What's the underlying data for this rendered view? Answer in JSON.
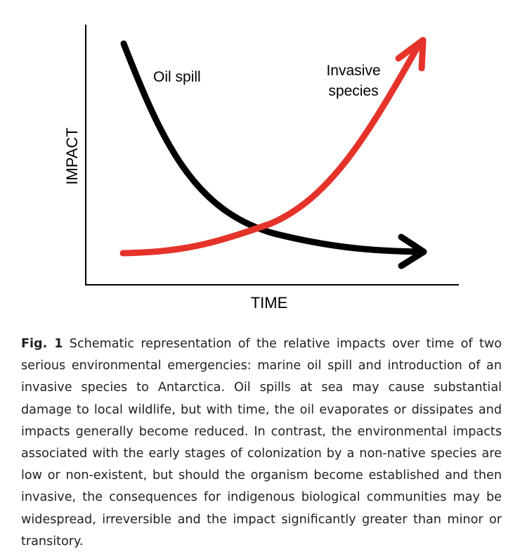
{
  "figure": {
    "y_axis_label": "IMPACT",
    "x_axis_label": "TIME",
    "series": [
      {
        "name": "Oil spill",
        "color": "#000000",
        "trend": "decreasing"
      },
      {
        "name_line1": "Invasive",
        "name_line2": "species",
        "color": "#e5332a",
        "trend": "increasing"
      }
    ]
  },
  "caption": {
    "label": "Fig. 1",
    "text": "Schematic representation of the relative impacts over time of two serious environmental emergencies: marine oil spill and introduc­tion of an invasive species to Antarctica. Oil spills at sea may cause substantial damage to local wildlife, but with time, the oil evaporates or dissipates and impacts generally become reduced. In contrast, the environmental impacts associated with the early stages of colonization by a non-native species are low or non-existent, but should the organism become established and then invasive, the consequences for indigenous biological communities may be widespread, irreversible and the impact significantly greater than minor or transitory."
  }
}
